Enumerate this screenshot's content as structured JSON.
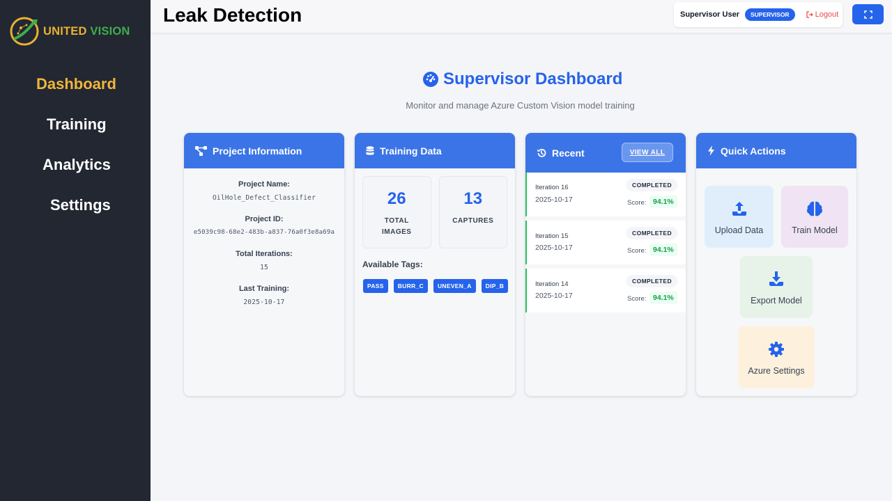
{
  "brand": {
    "part1": "UNITED",
    "part2": "VISION"
  },
  "sidebar": {
    "items": [
      {
        "label": "Dashboard",
        "active": true
      },
      {
        "label": "Training",
        "active": false
      },
      {
        "label": "Analytics",
        "active": false
      },
      {
        "label": "Settings",
        "active": false
      }
    ]
  },
  "header": {
    "title": "Leak Detection",
    "user": "Supervisor User",
    "role": "SUPERVISOR",
    "logout": "Logout"
  },
  "dashboard": {
    "title": "Supervisor Dashboard",
    "subtitle": "Monitor and manage Azure Custom Vision model training"
  },
  "project": {
    "heading": "Project Information",
    "fields": [
      {
        "label": "Project Name:",
        "value": "OilHole_Defect_Classifier"
      },
      {
        "label": "Project ID:",
        "value": "e5039c98-68e2-483b-a837-76a0f3e8a69a"
      },
      {
        "label": "Total Iterations:",
        "value": "15"
      },
      {
        "label": "Last Training:",
        "value": "2025-10-17"
      }
    ]
  },
  "training_data": {
    "heading": "Training Data",
    "total_images": "26",
    "total_images_label_1": "TOTAL",
    "total_images_label_2": "IMAGES",
    "captures": "13",
    "captures_label": "CAPTURES",
    "tags_label": "Available Tags:",
    "tags": [
      "PASS",
      "BURR_C",
      "UNEVEN_A",
      "DIP_B"
    ]
  },
  "recent": {
    "heading": "Recent",
    "view_all": "VIEW ALL",
    "score_label": "Score:",
    "iterations": [
      {
        "name": "Iteration 16",
        "date": "2025-10-17",
        "status": "COMPLETED",
        "score": "94.1%"
      },
      {
        "name": "Iteration 15",
        "date": "2025-10-17",
        "status": "COMPLETED",
        "score": "94.1%"
      },
      {
        "name": "Iteration 14",
        "date": "2025-10-17",
        "status": "COMPLETED",
        "score": "94.1%"
      }
    ]
  },
  "quick_actions": {
    "heading": "Quick Actions",
    "actions": [
      {
        "label": "Upload Data",
        "icon": "upload-icon"
      },
      {
        "label": "Train Model",
        "icon": "brain-icon"
      },
      {
        "label": "Export Model",
        "icon": "download-icon"
      },
      {
        "label": "Azure Settings",
        "icon": "gear-icon"
      }
    ]
  },
  "colors": {
    "primary": "#2563eb",
    "card_header": "#3b74e6",
    "sidebar": "#222732",
    "active_nav": "#f0b53a",
    "success": "#16a34a"
  }
}
